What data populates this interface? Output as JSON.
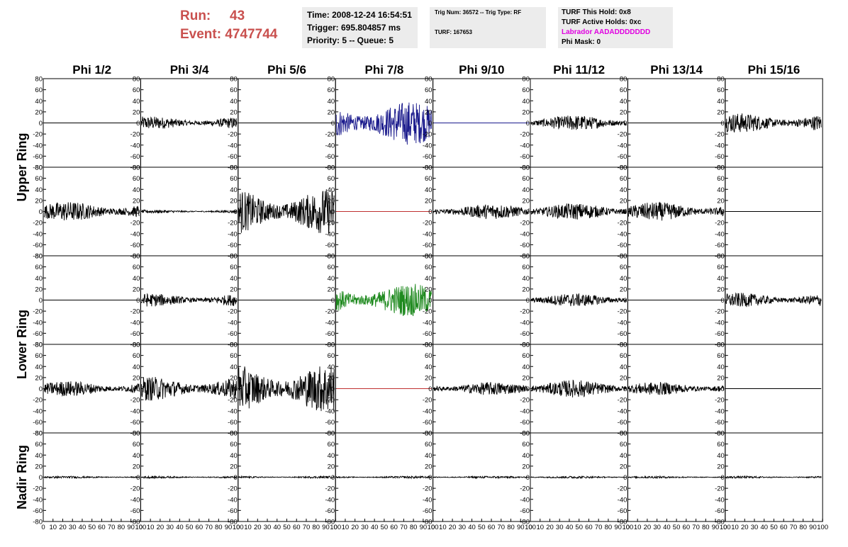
{
  "header": {
    "run_label": "Run:",
    "run_value": "43",
    "event_label": "Event:",
    "event_value": "4747744",
    "time": "Time: 2008-12-24 16:54:51",
    "trigger": "Trigger: 695.804857 ms",
    "priority": "Priority: 5 -- Queue: 5",
    "trig_num": "Trig Num: 36572 -- Trig Type: RF",
    "turf": "TURF: 167653",
    "turf_this_hold": "TURF This Hold: 0x8",
    "turf_active_holds": "TURF Active Holds: 0xc",
    "labrador": "Labrador AADADDDDDDD",
    "phi_mask": "Phi Mask: 0"
  },
  "chart_data": {
    "type": "line",
    "columns": [
      "Phi 1/2",
      "Phi 3/4",
      "Phi 5/6",
      "Phi 7/8",
      "Phi 9/10",
      "Phi 11/12",
      "Phi 13/14",
      "Phi 15/16"
    ],
    "ring_labels": [
      {
        "label": "Upper Ring",
        "rows": [
          0,
          1
        ]
      },
      {
        "label": "Lower Ring",
        "rows": [
          2,
          3
        ]
      },
      {
        "label": "Nadir Ring",
        "rows": [
          4
        ]
      }
    ],
    "ylim": [
      -80,
      80
    ],
    "xlim": [
      0,
      100
    ],
    "y_ticks": [
      "-80",
      "-60",
      "-40",
      "-20",
      "0",
      "20",
      "40",
      "60",
      "80"
    ],
    "x_ticks": [
      "0",
      "10",
      "20",
      "30",
      "40",
      "50",
      "60",
      "70",
      "80",
      "90",
      "100"
    ],
    "colors": {
      "default": "#000000",
      "highlight_blue": "#1a1a8c",
      "highlight_green": "#1f8a1f",
      "flat_red": "#c03030",
      "flat_blue": "#1a1a8c"
    },
    "panels": [
      [
        {
          "amp": 0,
          "color": "default"
        },
        {
          "amp": 12,
          "color": "default"
        },
        {
          "amp": 0,
          "color": "default"
        },
        {
          "amp": 40,
          "color": "highlight_blue"
        },
        {
          "amp": 0,
          "color": "flat_blue"
        },
        {
          "amp": 14,
          "color": "default"
        },
        {
          "amp": 0,
          "color": "default"
        },
        {
          "amp": 18,
          "color": "default"
        }
      ],
      [
        {
          "amp": 18,
          "color": "default"
        },
        {
          "amp": 3,
          "color": "default"
        },
        {
          "amp": 42,
          "color": "default"
        },
        {
          "amp": 0,
          "color": "flat_red"
        },
        {
          "amp": 14,
          "color": "default"
        },
        {
          "amp": 15,
          "color": "default"
        },
        {
          "amp": 17,
          "color": "default"
        },
        {
          "amp": 0,
          "color": "default"
        }
      ],
      [
        {
          "amp": 0,
          "color": "default"
        },
        {
          "amp": 12,
          "color": "default"
        },
        {
          "amp": 0,
          "color": "default"
        },
        {
          "amp": 30,
          "color": "highlight_green"
        },
        {
          "amp": 0,
          "color": "default"
        },
        {
          "amp": 12,
          "color": "default"
        },
        {
          "amp": 0,
          "color": "default"
        },
        {
          "amp": 13,
          "color": "default"
        }
      ],
      [
        {
          "amp": 14,
          "color": "default"
        },
        {
          "amp": 22,
          "color": "default"
        },
        {
          "amp": 45,
          "color": "default"
        },
        {
          "amp": 0,
          "color": "flat_red"
        },
        {
          "amp": 12,
          "color": "default"
        },
        {
          "amp": 16,
          "color": "default"
        },
        {
          "amp": 12,
          "color": "default"
        },
        {
          "amp": 0,
          "color": "default"
        }
      ],
      [
        {
          "amp": 2,
          "color": "default"
        },
        {
          "amp": 2,
          "color": "default"
        },
        {
          "amp": 2,
          "color": "default"
        },
        {
          "amp": 2,
          "color": "default"
        },
        {
          "amp": 2,
          "color": "default"
        },
        {
          "amp": 2,
          "color": "default"
        },
        {
          "amp": 2,
          "color": "default"
        },
        {
          "amp": 2,
          "color": "default"
        }
      ]
    ]
  }
}
